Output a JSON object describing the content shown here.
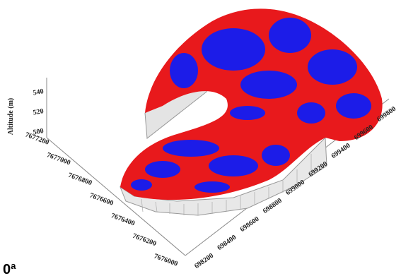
{
  "figure": {
    "panel_label": "0ª",
    "z_axis": {
      "label": "Altitude (m)",
      "ticks": [
        500,
        520,
        540
      ]
    },
    "y_axis": {
      "ticks": [
        7677200,
        7677000,
        7676800,
        7676600,
        7676400,
        7676200,
        7676000
      ]
    },
    "x_axis": {
      "ticks": [
        698200,
        698400,
        698600,
        698800,
        699000,
        699200,
        699400,
        699600,
        699800
      ]
    }
  }
}
